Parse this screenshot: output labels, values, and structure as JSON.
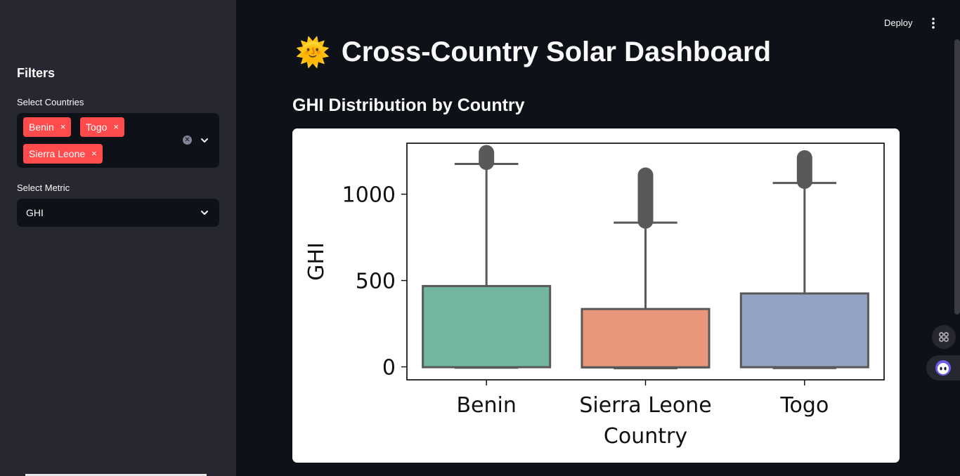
{
  "header": {
    "deploy_label": "Deploy",
    "menu_icon": "more-vertical-icon"
  },
  "sidebar": {
    "title": "Filters",
    "countries": {
      "label": "Select Countries",
      "selected": [
        "Benin",
        "Togo",
        "Sierra Leone"
      ],
      "remove_glyph": "×"
    },
    "metric": {
      "label": "Select Metric",
      "value": "GHI"
    }
  },
  "main": {
    "title_emoji": "🌞",
    "title": "Cross-Country Solar Dashboard",
    "subheader": "GHI Distribution by Country"
  },
  "colors": {
    "accent": "#ff4b4b",
    "background": "#0e1117",
    "sidebar": "#262730"
  },
  "chart_data": {
    "type": "box",
    "title": "",
    "xlabel": "Country",
    "ylabel": "GHI",
    "categories": [
      "Benin",
      "Sierra Leone",
      "Togo"
    ],
    "yticks": [
      0,
      500,
      1000
    ],
    "ylim": [
      -75,
      1295
    ],
    "series": [
      {
        "category": "Benin",
        "color": "#72b5a1",
        "whisker_low": -5,
        "q1": -2,
        "median": -2,
        "q3": 468,
        "whisker_high": 1175,
        "outliers_range": [
          1185,
          1240
        ]
      },
      {
        "category": "Sierra Leone",
        "color": "#e8977a",
        "whisker_low": -8,
        "q1": -3,
        "median": -3,
        "q3": 335,
        "whisker_high": 835,
        "outliers_range": [
          845,
          1110
        ]
      },
      {
        "category": "Togo",
        "color": "#94a2c3",
        "whisker_low": -7,
        "q1": -2,
        "median": -2,
        "q3": 425,
        "whisker_high": 1065,
        "outliers_range": [
          1075,
          1210
        ]
      }
    ],
    "grid": false,
    "legend": "none"
  }
}
